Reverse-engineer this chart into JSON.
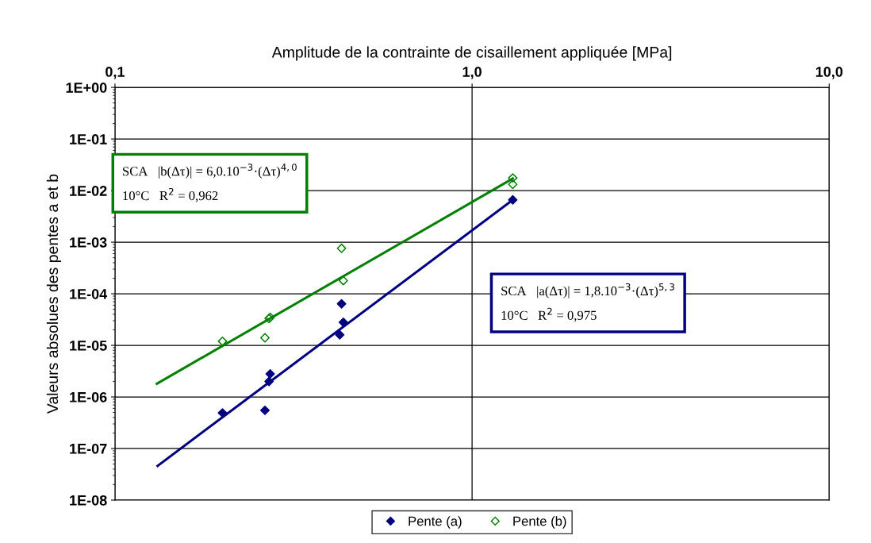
{
  "chart_data": {
    "type": "scatter",
    "xlabel": "Amplitude de la contrainte de cisaillement appliquée [MPa]",
    "ylabel": "Valeurs absolues des pentes a et b",
    "log": "xy",
    "grid": true,
    "legend": "bottom",
    "marker": "diamond",
    "xlim": [
      0.1,
      10
    ],
    "xticks": [
      {
        "value": 0.1,
        "label": "0,1"
      },
      {
        "value": 1,
        "label": "1,0"
      },
      {
        "value": 10,
        "label": "10,0"
      }
    ],
    "ylim": [
      1e-08,
      1
    ],
    "yticks": [
      {
        "value": 1,
        "label": "1E+00"
      },
      {
        "value": 0.1,
        "label": "1E-01"
      },
      {
        "value": 0.01,
        "label": "1E-02"
      },
      {
        "value": 0.001,
        "label": "1E-03"
      },
      {
        "value": 0.0001,
        "label": "1E-04"
      },
      {
        "value": 1e-05,
        "label": "1E-05"
      },
      {
        "value": 1e-06,
        "label": "1E-06"
      },
      {
        "value": 1e-07,
        "label": "1E-07"
      },
      {
        "value": 1e-08,
        "label": "1E-08"
      }
    ],
    "series": [
      {
        "name": "Pente (a)",
        "color": "#000080",
        "x": [
          0.2,
          0.263,
          0.272,
          0.27,
          0.431,
          0.436,
          0.426,
          1.3
        ],
        "values": [
          4.9e-07,
          5.5e-07,
          2.8e-06,
          2e-06,
          6.4e-05,
          2.8e-05,
          1.6e-05,
          0.0066
        ]
      },
      {
        "name": "Pente (b)",
        "color": "#008000",
        "x": [
          0.2,
          0.263,
          0.272,
          0.27,
          0.431,
          0.436,
          1.3,
          1.3
        ],
        "values": [
          1.2e-05,
          1.4e-05,
          3.5e-05,
          3.3e-05,
          0.00076,
          0.00018,
          0.0176,
          0.0132
        ]
      },
      {
        "type": "line",
        "marker": "none",
        "color": "#008000",
        "x": [
          0.131,
          1.3
        ],
        "values": [
          1.8e-06,
          0.0171
        ]
      },
      {
        "type": "line",
        "marker": "none",
        "color": "#000080",
        "x": [
          0.1316,
          1.3
        ],
        "values": [
          4.6e-08,
          0.0066
        ]
      }
    ],
    "annotations": [
      "SCA   |b(Δτ)| = 6,0.10$^{−3}$·(Δτ)$^{4,0}$\n10°C   R$^{2}$ = 0,962",
      "SCA   |a(Δτ)| = 1,8.10$^{−3}$·(Δτ)$^{5,3}$\n10°C   R$^{2}$ = 0,975"
    ]
  }
}
